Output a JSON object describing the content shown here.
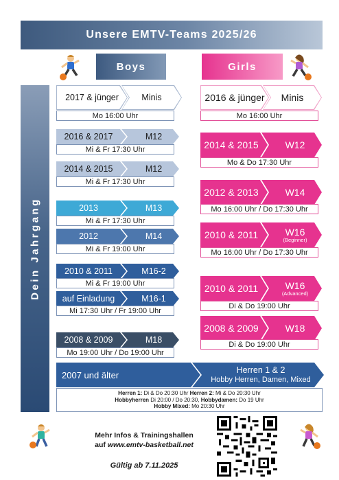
{
  "title": "Unsere EMTV-Teams 2025/26",
  "headers": {
    "boys": "Boys",
    "girls": "Girls"
  },
  "side_label": "Dein Jahrgang",
  "boys": [
    {
      "year": "2017 & jünger",
      "team": "Minis",
      "time": "Mo 16:00 Uhr"
    },
    {
      "year": "2016 & 2017",
      "team": "M12",
      "time": "Mi & Fr 17:30 Uhr"
    },
    {
      "year": "2014 & 2015",
      "team": "M12",
      "time": "Mi & Fr 17:30 Uhr"
    },
    {
      "year": "2013",
      "team": "M13",
      "time": "Mi & Fr 17:30 Uhr"
    },
    {
      "year": "2012",
      "team": "M14",
      "time": "Mi & Fr 19:00 Uhr"
    },
    {
      "year": "2010 & 2011",
      "team": "M16-2",
      "time": "Mi & Fr 19:00 Uhr"
    },
    {
      "year": "auf Einladung",
      "team": "M16-1",
      "time": "Mi 17:30 Uhr / Fr 19:00 Uhr"
    },
    {
      "year": "2008 & 2009",
      "team": "M18",
      "time": "Mo 19:00 Uhr / Do 19:00 Uhr"
    }
  ],
  "girls": [
    {
      "year": "2016 & jünger",
      "team": "Minis",
      "time": "Mo 16:00 Uhr"
    },
    {
      "year": "2014 & 2015",
      "team": "W12",
      "time": "Mo & Do 17:30 Uhr"
    },
    {
      "year": "2012 & 2013",
      "team": "W14",
      "time": "Mo 16:00 Uhr / Do 17:30 Uhr"
    },
    {
      "year": "2010 & 2011",
      "team": "W16",
      "note": "(Beginner)",
      "time": "Mo 16:00 Uhr / Do 17:30 Uhr"
    },
    {
      "year": "2010 & 2011",
      "team": "W16",
      "note": "(Advanced)",
      "time": "Di & Do 19:00 Uhr"
    },
    {
      "year": "2008 & 2009",
      "team": "W18",
      "time": "Di & Do 19:00 Uhr"
    }
  ],
  "herren": {
    "year": "2007 und älter",
    "title": "Herren 1 & 2",
    "subtitle": "Hobby Herren, Damen, Mixed",
    "line1": [
      {
        "label": "Herren 1:",
        "text": " Di & Do 20:30 Uhr "
      },
      {
        "label": "Herren 2:",
        "text": " Mi  & Do 20:30 Uhr"
      }
    ],
    "line2": [
      {
        "label": "Hobbyherren",
        "text": " Di 20:00 / Do 20:30, "
      },
      {
        "label": "Hobbydamen:",
        "text": " Do 19 Uhr"
      }
    ],
    "line3": [
      {
        "label": "Hobby Mixed:",
        "text": " Mo 20:30 Uhr"
      }
    ]
  },
  "footer": {
    "info_line1": "Mehr Infos & Trainingshallen",
    "info_line2_prefix": "auf ",
    "info_url": "www.emtv-basketball.net",
    "valid": "Gültig ab 7.11.2025"
  },
  "colors": {
    "navy": "#3e5a7e",
    "pink": "#e6338f",
    "light_blue": "#b7c6dc",
    "sky_blue": "#3ea9d6",
    "mid_blue": "#4d77ad",
    "dark_blue": "#2f5e9c",
    "slate": "#3a4e66"
  },
  "icons": [
    "basketball-boy-icon",
    "basketball-girl-icon",
    "qr-code-icon"
  ]
}
